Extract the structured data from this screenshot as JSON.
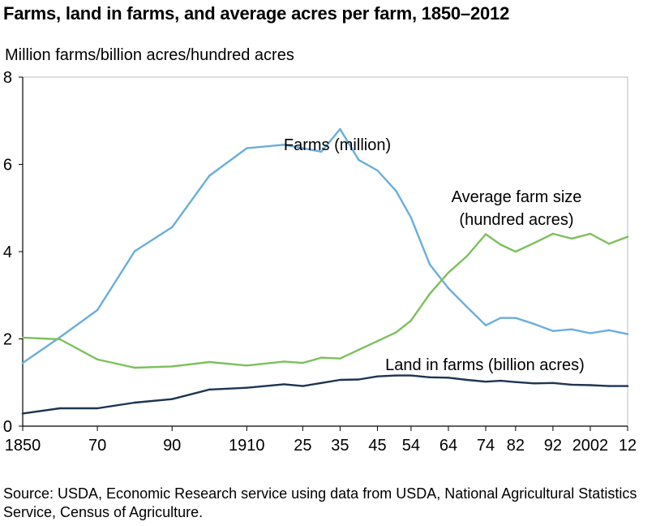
{
  "chart_data": {
    "type": "line",
    "title": "Farms, land in farms, and average acres per farm, 1850–2012",
    "ylabel": "Million farms/billion acres/hundred acres",
    "xlabel": "",
    "ylim": [
      0,
      8
    ],
    "yticks": [
      0,
      2,
      4,
      6,
      8
    ],
    "xlim": [
      1850,
      2012
    ],
    "x_tick_values": [
      1850,
      1870,
      1890,
      1910,
      1925,
      1935,
      1945,
      1954,
      1964,
      1974,
      1982,
      1992,
      2002,
      2012
    ],
    "x_tick_labels": [
      "1850",
      "70",
      "90",
      "1910",
      "25",
      "35",
      "45",
      "54",
      "64",
      "74",
      "82",
      "92",
      "2002",
      "12"
    ],
    "grid": false,
    "x": [
      1850,
      1860,
      1870,
      1880,
      1890,
      1900,
      1910,
      1920,
      1925,
      1930,
      1935,
      1940,
      1945,
      1950,
      1954,
      1959,
      1964,
      1969,
      1974,
      1978,
      1982,
      1987,
      1992,
      1997,
      2002,
      2007,
      2012
    ],
    "series": [
      {
        "name": "Farms (million)",
        "color": "#6aaedb",
        "values": [
          1.45,
          2.04,
          2.66,
          4.01,
          4.56,
          5.74,
          6.37,
          6.45,
          6.37,
          6.29,
          6.81,
          6.1,
          5.86,
          5.39,
          4.78,
          3.71,
          3.16,
          2.73,
          2.31,
          2.48,
          2.48,
          2.34,
          2.18,
          2.22,
          2.13,
          2.2,
          2.11
        ]
      },
      {
        "name": "Average farm size (hundred acres)",
        "color": "#7cc05c",
        "values": [
          2.03,
          1.99,
          1.53,
          1.34,
          1.37,
          1.47,
          1.39,
          1.48,
          1.45,
          1.57,
          1.55,
          1.75,
          1.95,
          2.15,
          2.42,
          3.03,
          3.52,
          3.9,
          4.4,
          4.16,
          4.0,
          4.2,
          4.41,
          4.3,
          4.41,
          4.18,
          4.34
        ]
      },
      {
        "name": "Land in farms (billion acres)",
        "color": "#1c3553",
        "values": [
          0.29,
          0.41,
          0.41,
          0.54,
          0.62,
          0.84,
          0.88,
          0.96,
          0.92,
          0.99,
          1.06,
          1.07,
          1.14,
          1.16,
          1.16,
          1.12,
          1.11,
          1.06,
          1.02,
          1.04,
          1.01,
          0.98,
          0.99,
          0.95,
          0.94,
          0.92,
          0.92
        ]
      }
    ],
    "annotations": [
      {
        "series": 0,
        "lines": [
          "Farms (million)"
        ]
      },
      {
        "series": 1,
        "lines": [
          "Average farm size",
          "(hundred acres)"
        ]
      },
      {
        "series": 2,
        "lines": [
          "Land in farms (billion acres)"
        ]
      }
    ]
  },
  "source_note": "Source: USDA, Economic Research service using data from USDA, National Agricultural Statistics Service, Census of Agriculture."
}
